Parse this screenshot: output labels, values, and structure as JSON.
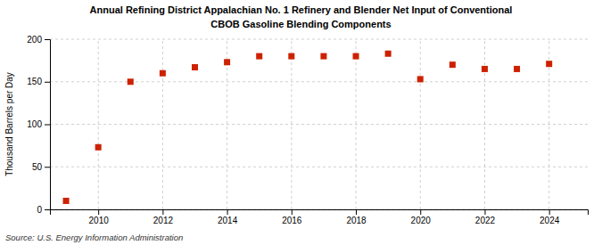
{
  "chart_data": {
    "type": "scatter",
    "title": "Annual Refining District Appalachian No. 1 Refinery and Blender Net Input of Conventional",
    "subtitle": "CBOB Gasoline Blending Components",
    "ylabel": "Thousand Barrels per Day",
    "source": "Source: U.S. Energy Information Administration",
    "x": [
      2009,
      2010,
      2011,
      2012,
      2013,
      2014,
      2015,
      2016,
      2017,
      2018,
      2019,
      2020,
      2021,
      2022,
      2023,
      2024
    ],
    "values": [
      10,
      73,
      150,
      160,
      167,
      173,
      180,
      180,
      180,
      180,
      183,
      153,
      170,
      165,
      165,
      171
    ],
    "color": "#cc2200",
    "marker": "square",
    "xlim": [
      2008.5,
      2025.2
    ],
    "xticks": [
      2010,
      2012,
      2014,
      2016,
      2018,
      2020,
      2022,
      2024
    ],
    "ylim": [
      0,
      200
    ],
    "yticks": [
      0,
      50,
      100,
      150,
      200
    ],
    "grid": true
  }
}
